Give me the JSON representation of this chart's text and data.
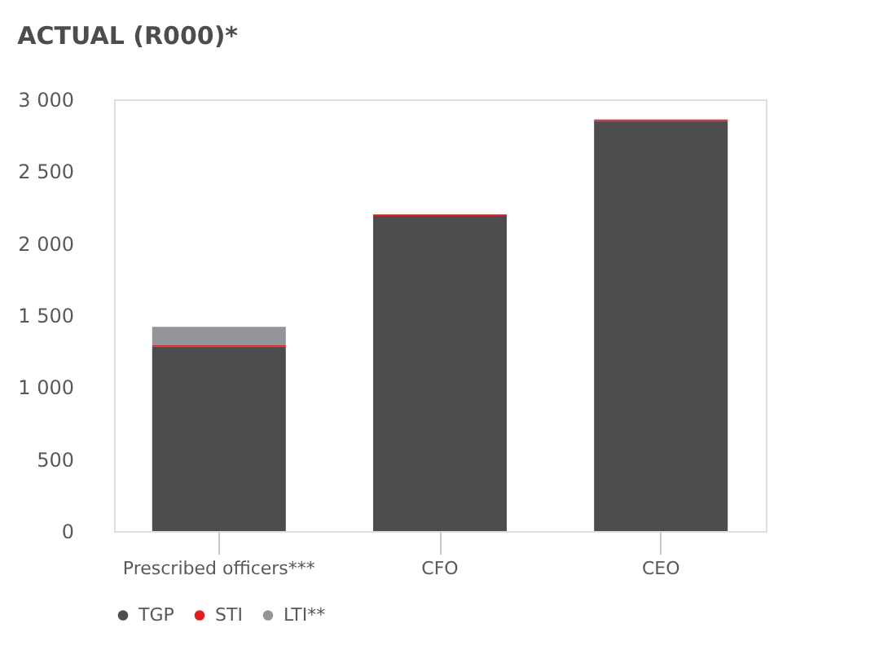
{
  "chart_data": {
    "type": "bar",
    "title": "ACTUAL (R000)*",
    "stacked": true,
    "categories": [
      "Prescribed officers***",
      "CFO",
      "CEO"
    ],
    "series": [
      {
        "name": "TGP",
        "color": "#4d4d4f",
        "values": [
          1280,
          2190,
          2850
        ]
      },
      {
        "name": "STI",
        "color": "#e31b23",
        "values": [
          10,
          10,
          10
        ]
      },
      {
        "name": "LTI**",
        "color": "#939598",
        "values": [
          130,
          0,
          0
        ]
      }
    ],
    "ylim": [
      0,
      3000
    ],
    "yticks": [
      0,
      {
        "value": 500,
        "label": "500"
      },
      {
        "value": 1000,
        "label": "1 000"
      },
      {
        "value": 1500,
        "label": "1 500"
      },
      {
        "value": 2000,
        "label": "2 000"
      },
      {
        "value": 2500,
        "label": "2 500"
      },
      {
        "value": 3000,
        "label": "3 000"
      }
    ],
    "grid": false,
    "legend": "bottom left"
  }
}
